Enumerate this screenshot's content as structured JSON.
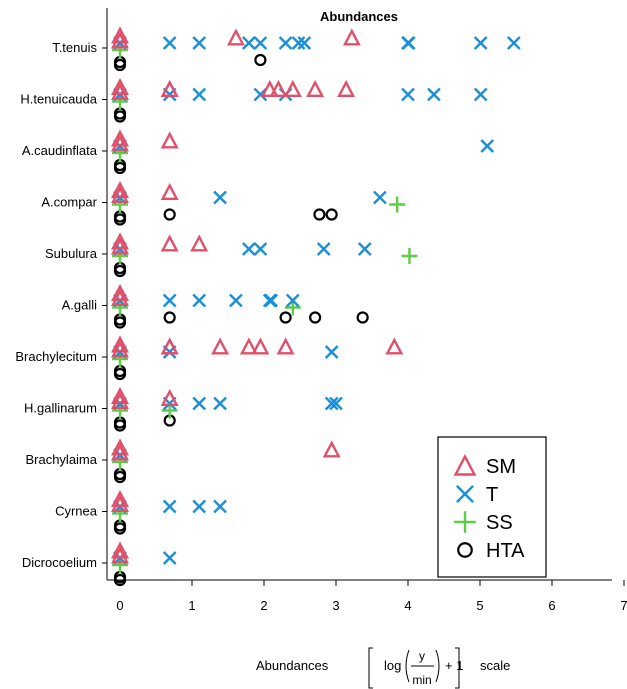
{
  "chart_data": {
    "type": "scatter",
    "title": "Abundances",
    "xlabel": "Abundances",
    "xlabel_formula": {
      "prefix": "log",
      "numerator": "y",
      "denominator": "min",
      "suffix": "+ 1",
      "tail": "scale"
    },
    "xlim": [
      0,
      7
    ],
    "xticks": [
      "0",
      "1",
      "2",
      "3",
      "4",
      "5",
      "6",
      "7"
    ],
    "legend_position": "bottom-right",
    "categories": [
      "T.tenuis",
      "H.tenuicauda",
      "A.caudinflata",
      "A.compar",
      "Subulura",
      "A.galli",
      "Brachylecitum",
      "H.gallinarum",
      "Brachylaima",
      "Cyrnea",
      "Dicrocoelium"
    ],
    "series": [
      {
        "name": "SM",
        "marker": "triangle",
        "color": "#E0506A",
        "points": [
          {
            "category": "T.tenuis",
            "x": [
              0,
              0,
              1.61,
              3.22
            ]
          },
          {
            "category": "H.tenuicauda",
            "x": [
              0,
              0,
              0.69,
              0.69,
              2.08,
              2.2,
              2.4,
              2.71,
              3.14
            ]
          },
          {
            "category": "A.caudinflata",
            "x": [
              0,
              0,
              0.69
            ]
          },
          {
            "category": "A.compar",
            "x": [
              0,
              0,
              0.69
            ]
          },
          {
            "category": "Subulura",
            "x": [
              0,
              0,
              0.69,
              1.1
            ]
          },
          {
            "category": "A.galli",
            "x": [
              0,
              0
            ]
          },
          {
            "category": "Brachylecitum",
            "x": [
              0,
              0,
              0.69,
              0.69,
              1.39,
              1.79,
              1.95,
              2.3,
              3.81
            ]
          },
          {
            "category": "H.gallinarum",
            "x": [
              0,
              0,
              0.69
            ]
          },
          {
            "category": "Brachylaima",
            "x": [
              0,
              0,
              2.94
            ]
          },
          {
            "category": "Cyrnea",
            "x": [
              0,
              0
            ]
          },
          {
            "category": "Dicrocoelium",
            "x": [
              0,
              0
            ]
          }
        ]
      },
      {
        "name": "T",
        "marker": "x",
        "color": "#1B8FD8",
        "points": [
          {
            "category": "T.tenuis",
            "x": [
              0,
              0.69,
              1.1,
              1.79,
              1.95,
              2.3,
              2.48,
              2.56,
              4.0,
              4.01,
              5.01,
              5.47
            ]
          },
          {
            "category": "H.tenuicauda",
            "x": [
              0,
              0.69,
              1.1,
              1.95,
              2.3,
              4.0,
              4.36,
              5.01
            ]
          },
          {
            "category": "A.caudinflata",
            "x": [
              0,
              5.1
            ]
          },
          {
            "category": "A.compar",
            "x": [
              0,
              1.39,
              3.61
            ]
          },
          {
            "category": "Subulura",
            "x": [
              0,
              1.79,
              1.95,
              2.83,
              3.4
            ]
          },
          {
            "category": "A.galli",
            "x": [
              0,
              0.69,
              1.1,
              1.61,
              2.08,
              2.1,
              2.4
            ]
          },
          {
            "category": "Brachylecitum",
            "x": [
              0,
              0.69,
              2.94
            ]
          },
          {
            "category": "H.gallinarum",
            "x": [
              0,
              0.69,
              1.1,
              1.39,
              2.94,
              3.0
            ]
          },
          {
            "category": "Brachylaima",
            "x": [
              0
            ]
          },
          {
            "category": "Cyrnea",
            "x": [
              0,
              0.69,
              1.1,
              1.39
            ]
          },
          {
            "category": "Dicrocoelium",
            "x": [
              0,
              0.69
            ]
          }
        ]
      },
      {
        "name": "SS",
        "marker": "plus",
        "color": "#5FCB47",
        "points": [
          {
            "category": "T.tenuis",
            "x": [
              0
            ]
          },
          {
            "category": "H.tenuicauda",
            "x": [
              0
            ]
          },
          {
            "category": "A.caudinflata",
            "x": [
              0
            ]
          },
          {
            "category": "A.compar",
            "x": [
              0,
              3.85
            ]
          },
          {
            "category": "Subulura",
            "x": [
              0,
              4.02
            ]
          },
          {
            "category": "A.galli",
            "x": [
              0,
              2.4
            ]
          },
          {
            "category": "Brachylecitum",
            "x": [
              0
            ]
          },
          {
            "category": "H.gallinarum",
            "x": [
              0,
              0.69
            ]
          },
          {
            "category": "Brachylaima",
            "x": [
              0
            ]
          },
          {
            "category": "Cyrnea",
            "x": [
              0
            ]
          },
          {
            "category": "Dicrocoelium",
            "x": [
              0
            ]
          }
        ]
      },
      {
        "name": "HTA",
        "marker": "circle",
        "color": "#000000",
        "points": [
          {
            "category": "T.tenuis",
            "x": [
              0,
              0,
              1.95
            ]
          },
          {
            "category": "H.tenuicauda",
            "x": [
              0,
              0
            ]
          },
          {
            "category": "A.caudinflata",
            "x": [
              0,
              0
            ]
          },
          {
            "category": "A.compar",
            "x": [
              0,
              0,
              0.69,
              2.77,
              2.94
            ]
          },
          {
            "category": "Subulura",
            "x": [
              0,
              0
            ]
          },
          {
            "category": "A.galli",
            "x": [
              0,
              0,
              0.69,
              2.3,
              2.71,
              3.37
            ]
          },
          {
            "category": "Brachylecitum",
            "x": [
              0,
              0
            ]
          },
          {
            "category": "H.gallinarum",
            "x": [
              0,
              0,
              0.69
            ]
          },
          {
            "category": "Brachylaima",
            "x": [
              0,
              0
            ]
          },
          {
            "category": "Cyrnea",
            "x": [
              0,
              0
            ]
          },
          {
            "category": "Dicrocoelium",
            "x": [
              0,
              0
            ]
          }
        ]
      }
    ]
  }
}
